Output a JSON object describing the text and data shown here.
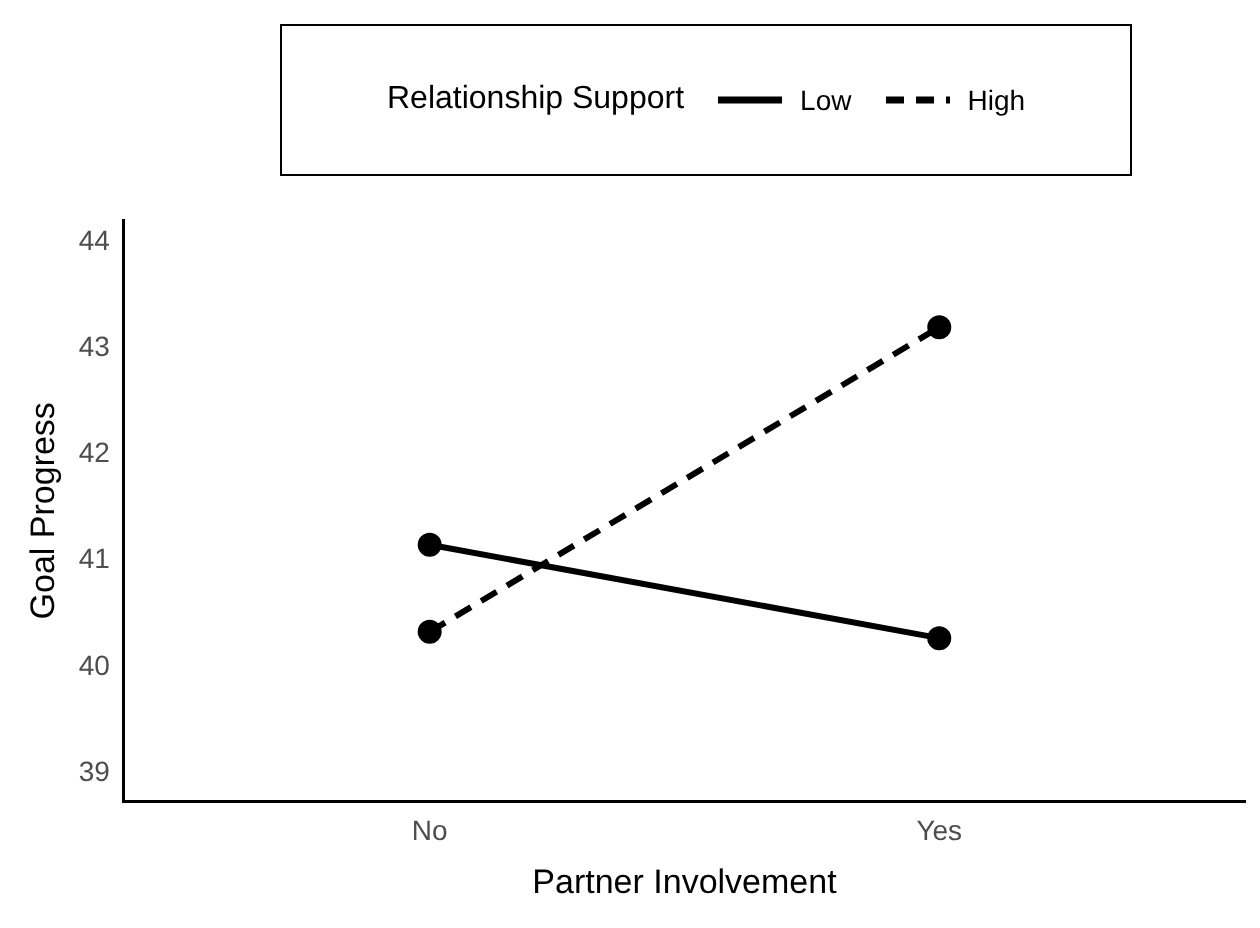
{
  "chart_data": {
    "type": "line",
    "xlabel": "Partner Involvement",
    "ylabel": "Goal Progress",
    "legend_title": "Relationship Support",
    "categories": [
      "No",
      "Yes"
    ],
    "series": [
      {
        "name": "Low",
        "color": "#000000",
        "values": [
          41.15,
          40.27
        ],
        "line_style": "solid"
      },
      {
        "name": "High",
        "color": "#000000",
        "values": [
          40.33,
          43.2
        ],
        "line_style": "dashed"
      }
    ],
    "ylim": [
      38.73,
      44.21
    ],
    "yticks": [
      39,
      40,
      41,
      42,
      43,
      44
    ],
    "grid": false,
    "legend": "top",
    "marker": "circle"
  }
}
